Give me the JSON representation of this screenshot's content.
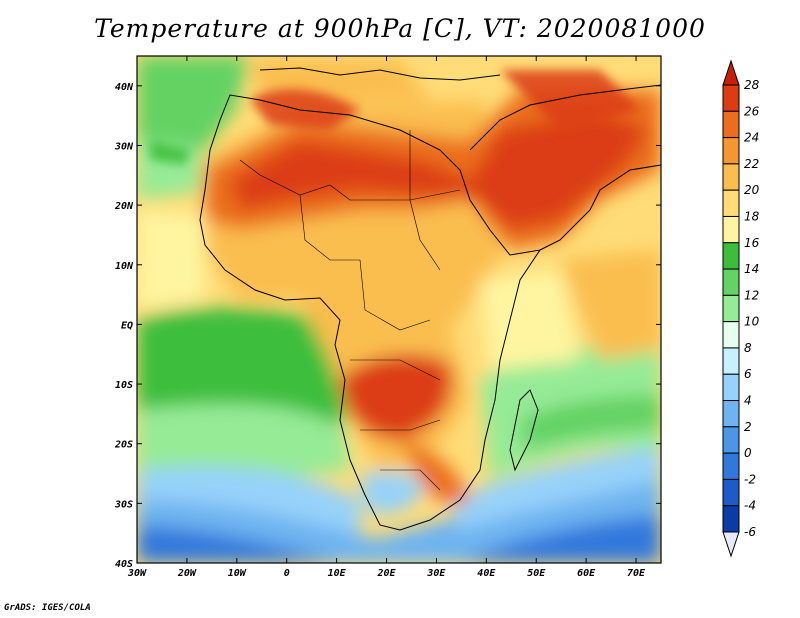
{
  "title": "Temperature at 900hPa [C], VT: 2020081000",
  "footer": "GrADS: IGES/COLA",
  "map": {
    "region": "Africa",
    "projection": "latlon",
    "lon_range": [
      -30,
      75
    ],
    "lat_range": [
      -40,
      45
    ],
    "lon_ticks": [
      {
        "value": -30,
        "label": "30W"
      },
      {
        "value": -20,
        "label": "20W"
      },
      {
        "value": -10,
        "label": "10W"
      },
      {
        "value": 0,
        "label": "0"
      },
      {
        "value": 10,
        "label": "10E"
      },
      {
        "value": 20,
        "label": "20E"
      },
      {
        "value": 30,
        "label": "30E"
      },
      {
        "value": 40,
        "label": "40E"
      },
      {
        "value": 50,
        "label": "50E"
      },
      {
        "value": 60,
        "label": "60E"
      },
      {
        "value": 70,
        "label": "70E"
      }
    ],
    "lat_ticks": [
      {
        "value": 40,
        "label": "40N"
      },
      {
        "value": 30,
        "label": "30N"
      },
      {
        "value": 20,
        "label": "20N"
      },
      {
        "value": 10,
        "label": "10N"
      },
      {
        "value": 0,
        "label": "EQ"
      },
      {
        "value": -10,
        "label": "10S"
      },
      {
        "value": -20,
        "label": "20S"
      },
      {
        "value": -30,
        "label": "30S"
      },
      {
        "value": -40,
        "label": "40S"
      }
    ]
  },
  "colorbar": {
    "levels": [
      "-6",
      "-4",
      "-2",
      "0",
      "2",
      "4",
      "6",
      "8",
      "10",
      "12",
      "14",
      "16",
      "18",
      "20",
      "22",
      "24",
      "26",
      "28"
    ],
    "colors": [
      "#001e6e",
      "#0a3ca5",
      "#1e5ac8",
      "#3278dc",
      "#4b96e6",
      "#6eb4f0",
      "#96d2fa",
      "#c8f0ff",
      "#e6fff0",
      "#96eb96",
      "#64d264",
      "#3cbe3c",
      "#fff5a0",
      "#ffdc78",
      "#fabe50",
      "#f59632",
      "#eb6e1e",
      "#dc3c14",
      "#c81e0a"
    ]
  }
}
